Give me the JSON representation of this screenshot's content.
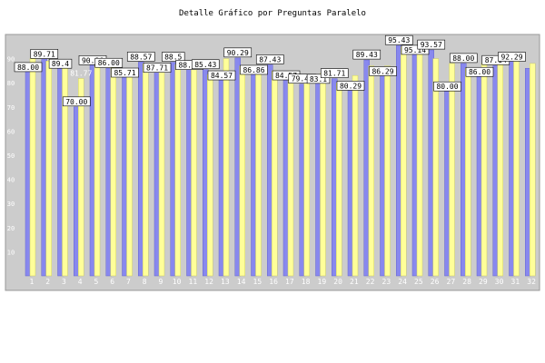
{
  "chart_data": {
    "type": "bar",
    "title": "Detalle Gráfico por Preguntas Paralelo",
    "xlabel": "",
    "ylabel": "",
    "ylim": [
      0,
      100
    ],
    "y_ticks": [
      "10",
      "20",
      "30",
      "40",
      "50",
      "60",
      "70",
      "80",
      "90"
    ],
    "grid": false,
    "categories": [
      "1",
      "2",
      "3",
      "4",
      "5",
      "6",
      "7",
      "8",
      "9",
      "10",
      "11",
      "12",
      "13",
      "14",
      "15",
      "16",
      "17",
      "18",
      "19",
      "20",
      "21",
      "22",
      "23",
      "24",
      "25",
      "26",
      "27",
      "28",
      "29",
      "30",
      "31",
      "32"
    ],
    "series": [
      {
        "color": "#8888ee",
        "values": [
          88.0,
          89.71,
          89.4,
          70.0,
          90.86,
          86.0,
          85.71,
          88.57,
          87.71,
          88.5,
          88.86,
          85.43,
          84.57,
          90.29,
          86.86,
          87.43,
          84.57,
          79.43,
          83.14,
          81.71,
          80.29,
          89.43,
          86.29,
          95.43,
          95.14,
          93.57,
          80.0,
          88.0,
          86.0,
          87.14,
          92.29,
          86.0
        ],
        "labels": [
          "88.00",
          "89.71",
          "89.4",
          "70.00",
          "90.86",
          "86.00",
          "85.71",
          "88.57",
          "87.71",
          "88.5",
          "88.86",
          "85.43",
          "84.57",
          "90.29",
          "86.86",
          "87.43",
          "84.57",
          "79.43",
          "83.1",
          "81.71",
          "80.29",
          "89.43",
          "86.29",
          "95.43",
          "95.14",
          "93.57",
          "80.00",
          "88.00",
          "86.00",
          "87.14",
          "92.29",
          ""
        ]
      },
      {
        "color": "#ffff99",
        "values": [
          90.0,
          89.0,
          88.0,
          81.77,
          88.0,
          86.5,
          84.0,
          88.0,
          86.5,
          87.5,
          87.0,
          83.5,
          90.0,
          87.0,
          86.0,
          85.0,
          82.0,
          82.0,
          84.0,
          80.0,
          83.0,
          87.0,
          87.0,
          95.0,
          94.0,
          90.0,
          88.0,
          86.0,
          88.0,
          89.0,
          90.0,
          88.0
        ],
        "labels": [
          "",
          "",
          "",
          "81.77",
          "",
          "",
          "",
          "",
          "",
          "",
          "",
          "",
          "",
          "",
          "",
          "",
          "",
          "",
          "",
          "",
          "",
          "",
          "",
          "",
          "",
          "",
          "",
          "",
          "",
          "",
          "",
          ""
        ]
      }
    ]
  }
}
